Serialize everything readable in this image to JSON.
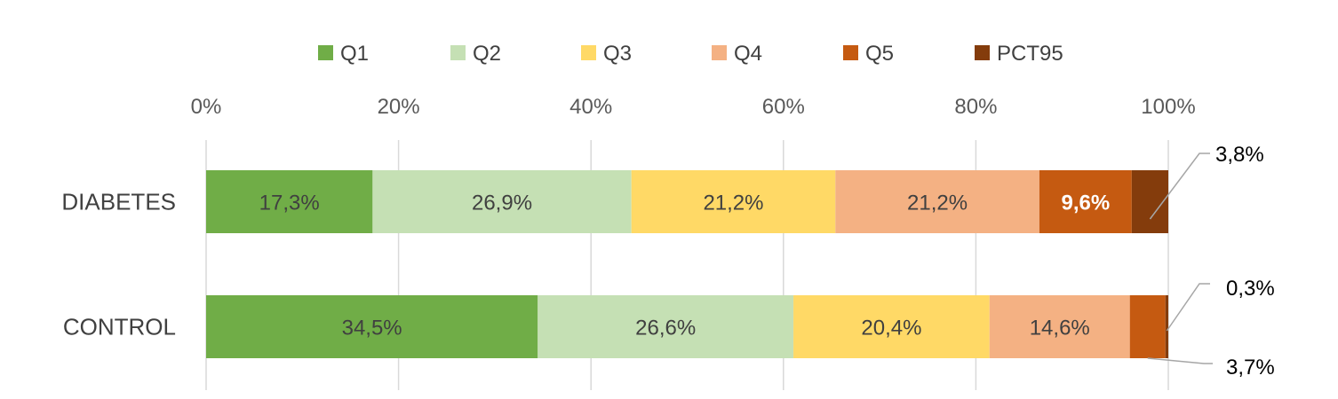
{
  "chart_data": {
    "type": "bar",
    "orientation": "horizontal",
    "stacked": "percent",
    "categories": [
      "DIABETES",
      "CONTROL"
    ],
    "series": [
      {
        "name": "Q1",
        "color": "#70ad47",
        "values": [
          17.3,
          34.5
        ],
        "labels": [
          "17,3%",
          "34,5%"
        ]
      },
      {
        "name": "Q2",
        "color": "#c5e0b4",
        "values": [
          26.9,
          26.6
        ],
        "labels": [
          "26,9%",
          "26,6%"
        ]
      },
      {
        "name": "Q3",
        "color": "#ffd966",
        "values": [
          21.2,
          20.4
        ],
        "labels": [
          "21,2%",
          "20,4%"
        ]
      },
      {
        "name": "Q4",
        "color": "#f4b183",
        "values": [
          21.2,
          14.6
        ],
        "labels": [
          "21,2%",
          "14,6%"
        ]
      },
      {
        "name": "Q5",
        "color": "#c55a11",
        "values": [
          9.6,
          3.7
        ],
        "labels": [
          "9,6%",
          "3,7%"
        ]
      },
      {
        "name": "PCT95",
        "color": "#843c0c",
        "values": [
          3.8,
          0.3
        ],
        "labels": [
          "3,8%",
          "0,3%"
        ]
      }
    ],
    "xlim": [
      0,
      100
    ],
    "x_ticks": [
      "0%",
      "20%",
      "40%",
      "60%",
      "80%",
      "100%"
    ],
    "grid": true,
    "legend_position": "top"
  }
}
